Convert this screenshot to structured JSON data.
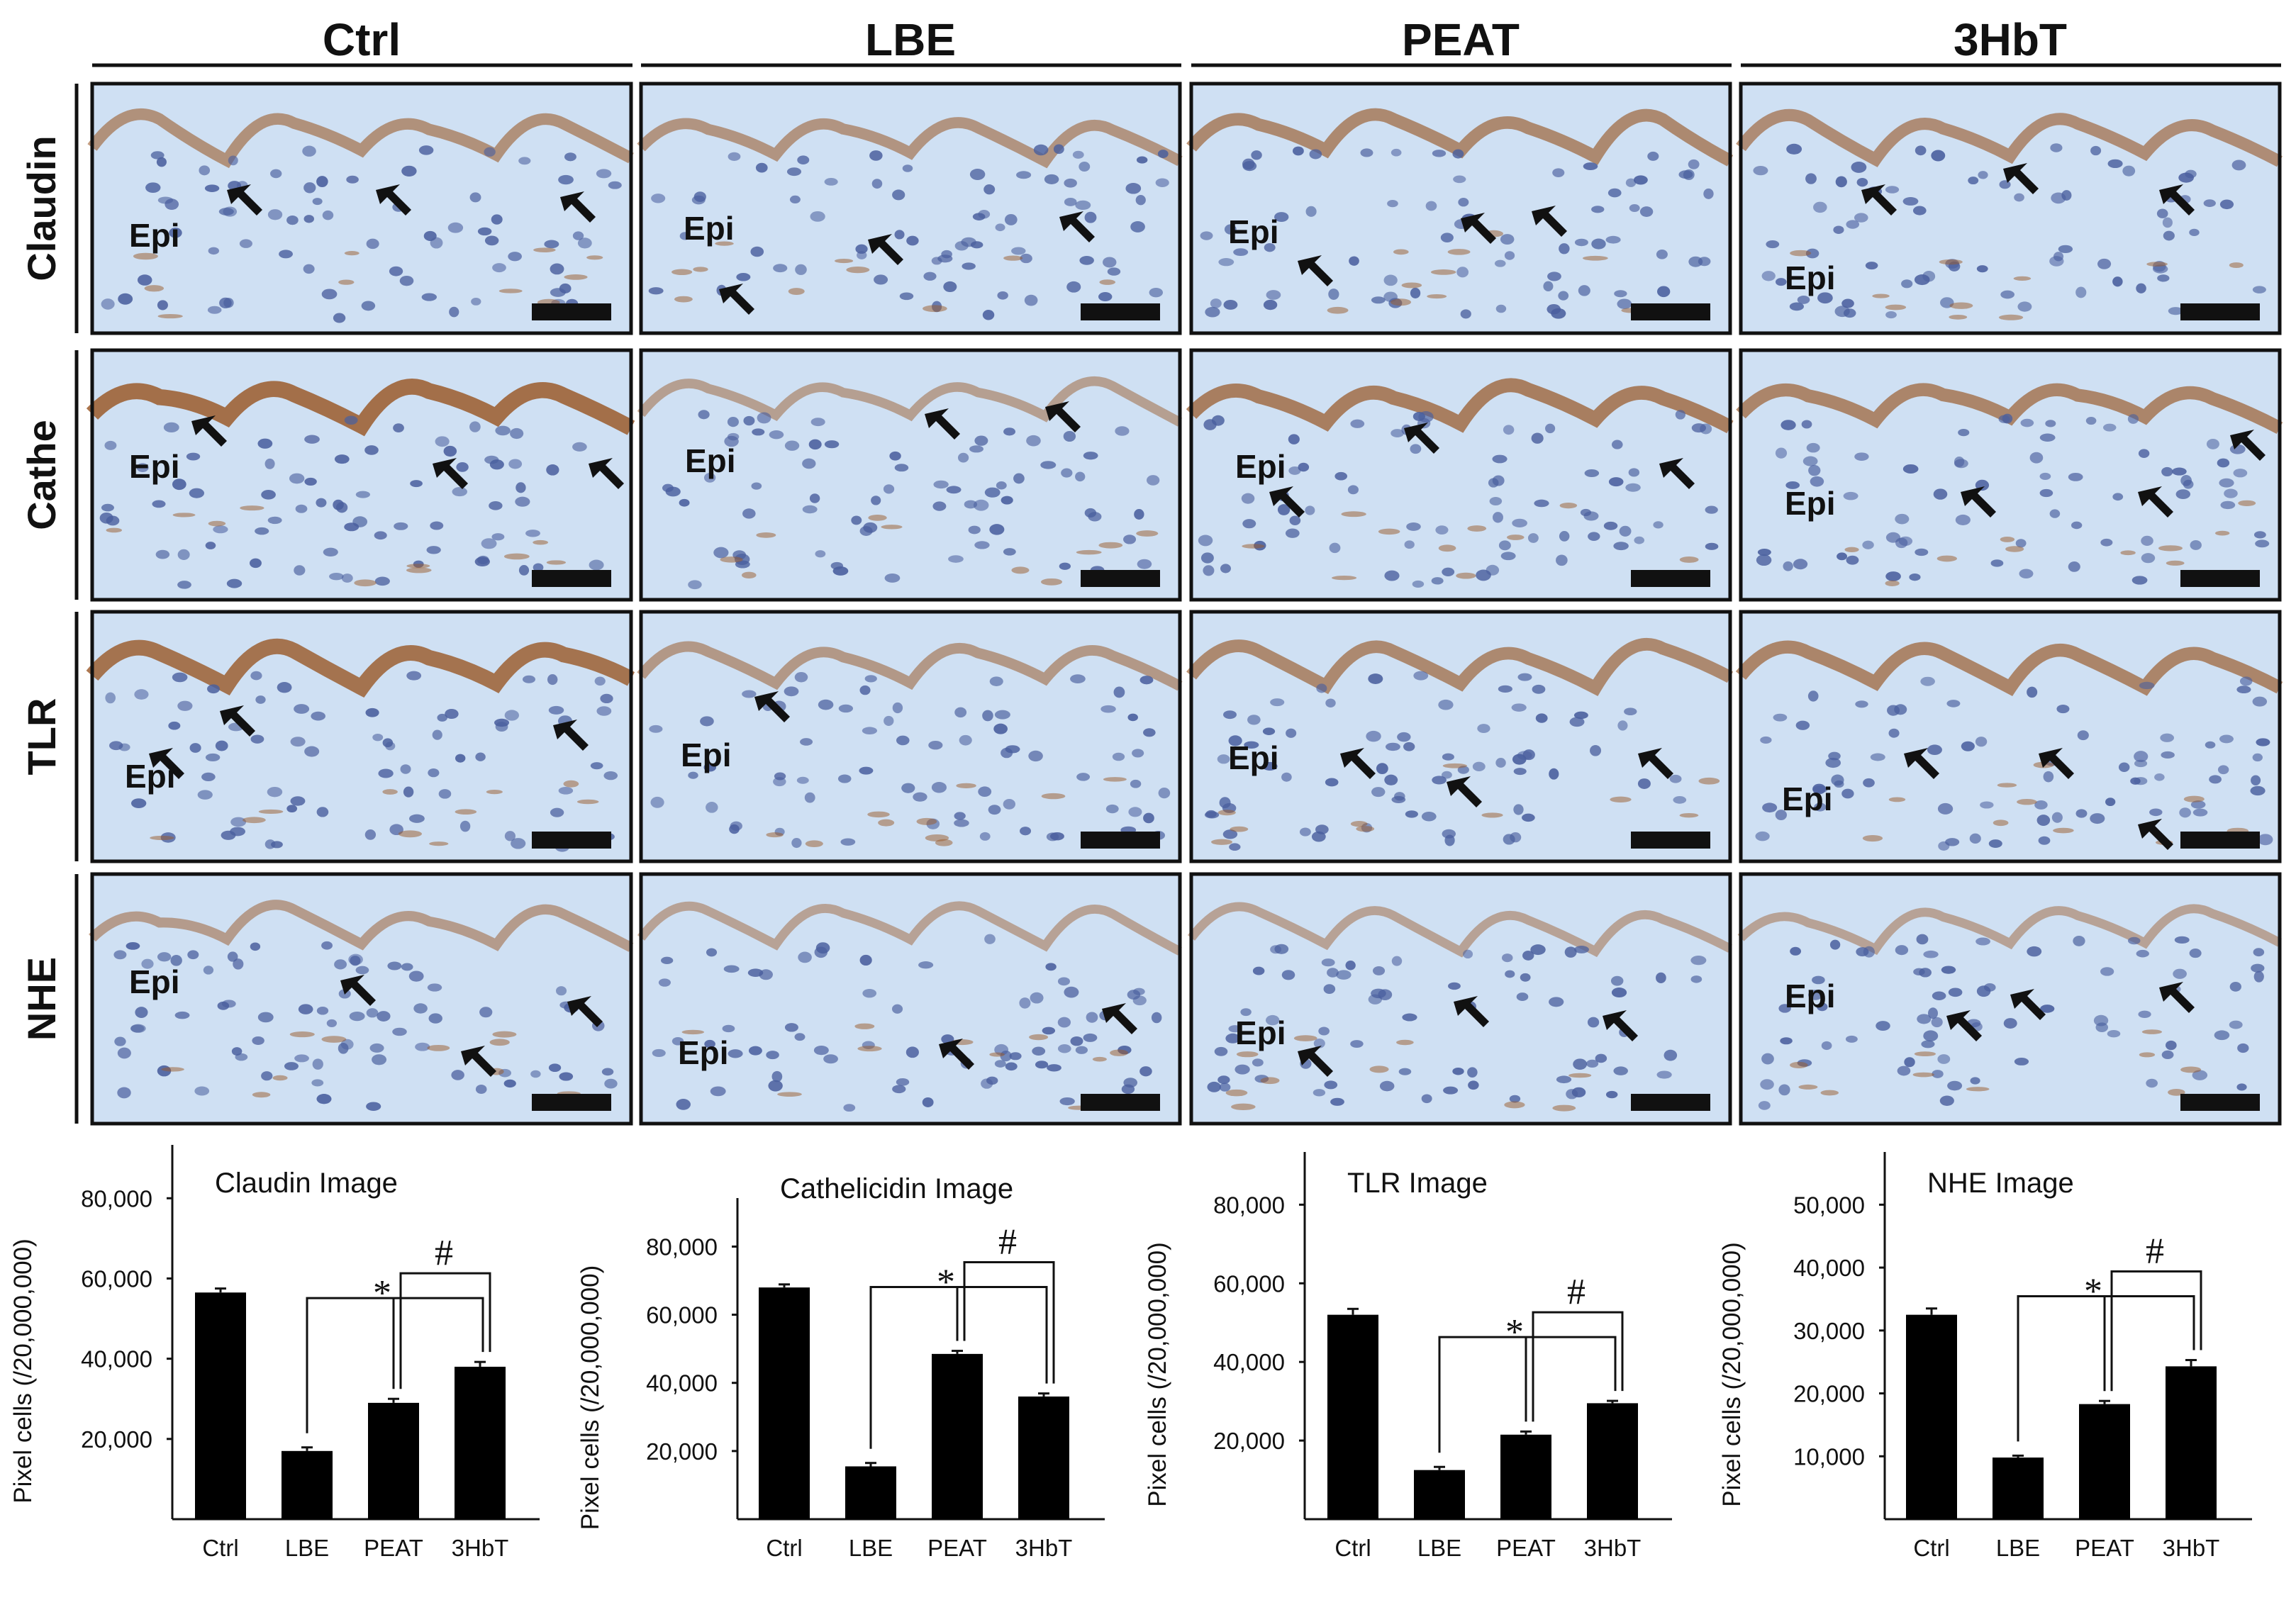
{
  "figure": {
    "columns": [
      "Ctrl",
      "LBE",
      "PEAT",
      "3HbT"
    ],
    "rows": [
      "Claudin",
      "Cathe",
      "TLR",
      "NHE"
    ],
    "region_label": "Epi",
    "colors": {
      "tissue_bg": "#cfe0f3",
      "nucleus": "#4a5f9e",
      "stain_brown": "#9a5a2a",
      "bar": "#000000"
    }
  },
  "chart_data": [
    {
      "type": "bar",
      "title": "Claudin Image",
      "ylabel": "Pixel cells (/20,000,000)",
      "categories": [
        "Ctrl",
        "LBE",
        "PEAT",
        "3HbT"
      ],
      "values": [
        56500,
        17000,
        29000,
        38000
      ],
      "errors": [
        1000,
        900,
        1000,
        1200
      ],
      "ylim": [
        0,
        88000
      ],
      "yticks": [
        20000,
        40000,
        60000,
        80000
      ],
      "ytick_labels": [
        "20,000",
        "40,000",
        "60,000",
        "80,000"
      ],
      "significance": [
        "*",
        "#"
      ]
    },
    {
      "type": "bar",
      "title": "Cathelicidin Image",
      "ylabel": "Pixel cells (/20,000,000)",
      "categories": [
        "Ctrl",
        "LBE",
        "PEAT",
        "3HbT"
      ],
      "values": [
        68000,
        15500,
        48500,
        36000
      ],
      "errors": [
        900,
        1000,
        900,
        900
      ],
      "ylim": [
        0,
        88000
      ],
      "yticks": [
        20000,
        40000,
        60000,
        80000
      ],
      "ytick_labels": [
        "20,000",
        "40,000",
        "60,000",
        "80,000"
      ],
      "significance": [
        "*",
        "#"
      ]
    },
    {
      "type": "bar",
      "title": "TLR Image",
      "ylabel": "Pixel cells (/20,000,000)",
      "categories": [
        "Ctrl",
        "LBE",
        "PEAT",
        "3HbT"
      ],
      "values": [
        52000,
        12500,
        21500,
        29500
      ],
      "errors": [
        1500,
        800,
        800,
        600
      ],
      "ylim": [
        0,
        88000
      ],
      "yticks": [
        20000,
        40000,
        60000,
        80000
      ],
      "ytick_labels": [
        "20,000",
        "40,000",
        "60,000",
        "80,000"
      ],
      "significance": [
        "*",
        "#"
      ]
    },
    {
      "type": "bar",
      "title": "NHE Image",
      "ylabel": "Pixel cells (/20,000,000)",
      "categories": [
        "Ctrl",
        "LBE",
        "PEAT",
        "3HbT"
      ],
      "values": [
        32500,
        9800,
        18300,
        24300
      ],
      "errors": [
        1000,
        300,
        500,
        1000
      ],
      "ylim": [
        0,
        55000
      ],
      "yticks": [
        10000,
        20000,
        30000,
        40000,
        50000
      ],
      "ytick_labels": [
        "10,000",
        "20,000",
        "30,000",
        "40,000",
        "50,000"
      ],
      "significance": [
        "*",
        "#"
      ]
    }
  ]
}
